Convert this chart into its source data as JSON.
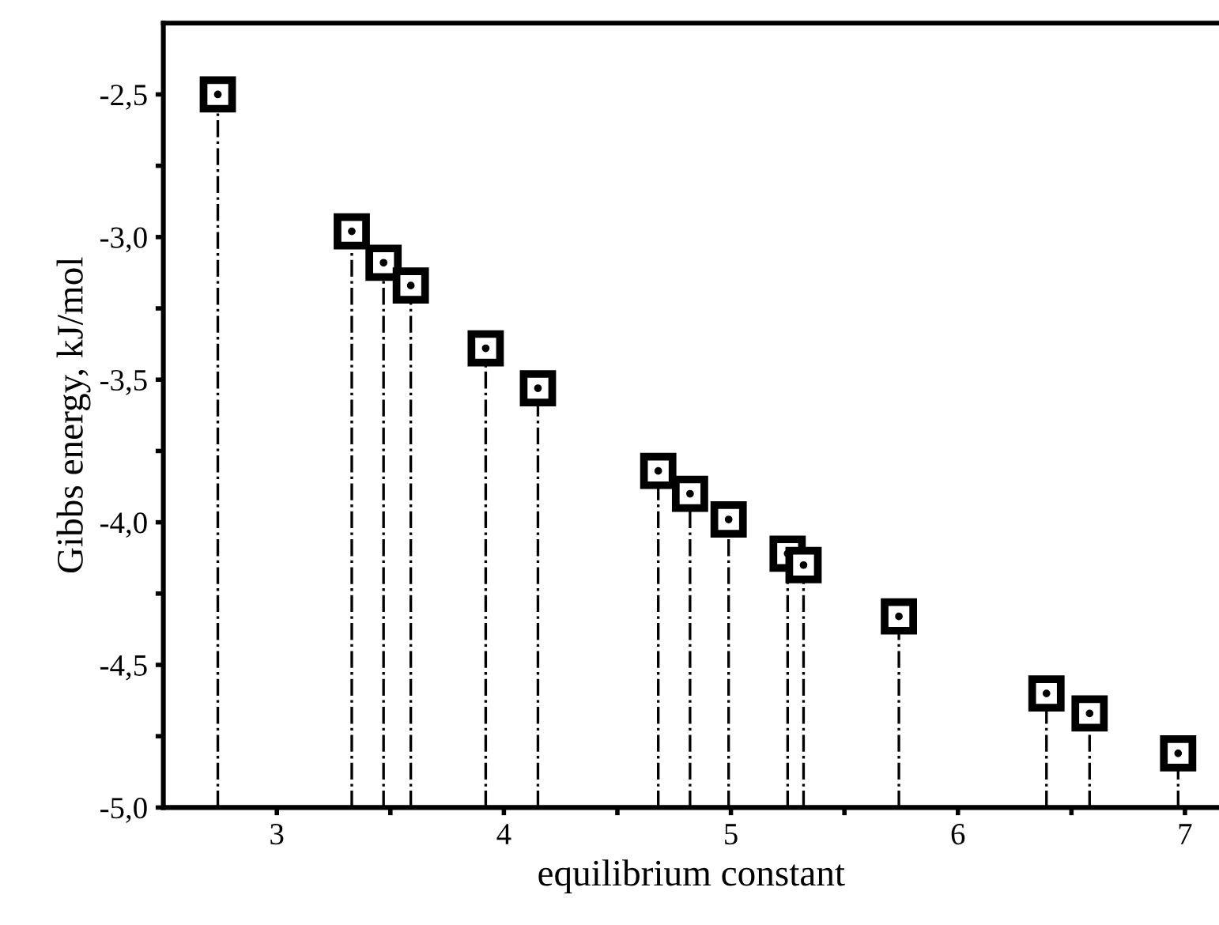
{
  "chart_data": {
    "type": "scatter",
    "xlabel": "equilibrium constant",
    "ylabel": "Gibbs energy, kJ/mol",
    "marker": "square",
    "line_style": "dashdot",
    "color": "#000000",
    "grid": false,
    "legend": false,
    "x": [
      2.74,
      3.33,
      3.47,
      3.59,
      3.92,
      4.15,
      4.68,
      4.82,
      4.99,
      5.25,
      5.32,
      5.74,
      6.39,
      6.58,
      6.97
    ],
    "values": [
      -2.5,
      -2.98,
      -3.09,
      -3.17,
      -3.39,
      -3.53,
      -3.82,
      -3.9,
      -3.99,
      -4.11,
      -4.15,
      -4.33,
      -4.6,
      -4.67,
      -4.81
    ],
    "errors": [
      [
        -5.0,
        -2.5
      ],
      [
        -5.0,
        -2.98
      ],
      [
        -5.0,
        -3.09
      ],
      [
        -5.0,
        -3.17
      ],
      [
        -5.0,
        -3.39
      ],
      [
        -5.0,
        -3.53
      ],
      [
        -5.0,
        -3.82
      ],
      [
        -5.0,
        -3.9
      ],
      [
        -5.0,
        -3.99
      ],
      [
        -5.0,
        -4.11
      ],
      [
        -5.0,
        -4.15
      ],
      [
        -5.0,
        -4.33
      ],
      [
        -5.0,
        -4.6
      ],
      [
        -5.0,
        -4.67
      ],
      [
        -5.0,
        -4.81
      ]
    ],
    "xlim": [
      2.5,
      7.15
    ],
    "ylim": [
      -5.0,
      -2.25
    ],
    "xticks": [
      3,
      {
        "value": 3.5,
        "label": null
      },
      4,
      {
        "value": 4.5,
        "label": null
      },
      5,
      {
        "value": 5.5,
        "label": null
      },
      6,
      {
        "value": 6.5,
        "label": null
      },
      7
    ],
    "yticks": [
      {
        "value": -5.0,
        "label": "-5,0"
      },
      {
        "value": -4.75,
        "label": null
      },
      {
        "value": -4.5,
        "label": "-4,5"
      },
      {
        "value": -4.25,
        "label": null
      },
      {
        "value": -4.0,
        "label": "-4,0"
      },
      {
        "value": -3.75,
        "label": null
      },
      {
        "value": -3.5,
        "label": "-3,5"
      },
      {
        "value": -3.25,
        "label": null
      },
      {
        "value": -3.0,
        "label": "-3,0"
      },
      {
        "value": -2.75,
        "label": null
      },
      {
        "value": -2.5,
        "label": "-2,5"
      }
    ]
  }
}
